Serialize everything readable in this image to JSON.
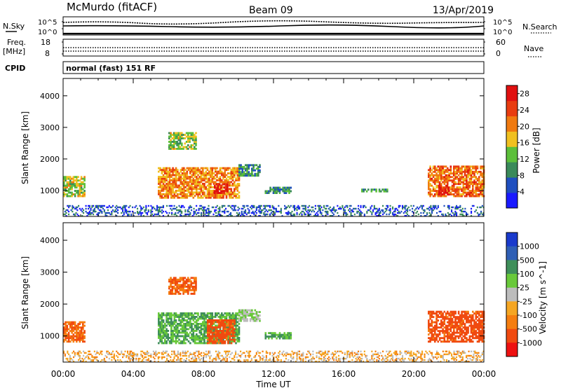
{
  "header": {
    "station": "McMurdo (fitACF)",
    "beam": "Beam 09",
    "date": "13/Apr/2019"
  },
  "noise_panel": {
    "left_label": "N.Sky",
    "right_label": "N.Search",
    "left_ticks": [
      "10^5",
      "10^0"
    ],
    "right_ticks": [
      "10^5",
      "10^0"
    ]
  },
  "freq_panel": {
    "left_label": "Freq.",
    "left_unit": "[MHz]",
    "right_label": "Nave",
    "left_ticks": [
      "18",
      "8"
    ],
    "right_ticks": [
      "60",
      "0"
    ]
  },
  "cpid": {
    "label": "CPID",
    "value": "normal (fast) 151 RF"
  },
  "x_axis": {
    "label": "Time UT",
    "ticks": [
      "00:00",
      "04:00",
      "08:00",
      "12:00",
      "16:00",
      "20:00",
      "00:00"
    ],
    "range_hours": [
      0,
      24
    ]
  },
  "colors": {
    "power_scale": [
      "#1a1aff",
      "#1f4fbf",
      "#3a8a5a",
      "#5cbf3a",
      "#f0c020",
      "#f07a10",
      "#e83c10",
      "#e01010"
    ],
    "velocity_scale": [
      "#ee1111",
      "#f04a10",
      "#f57e10",
      "#f5a623",
      "#bcbcbc",
      "#69c93a",
      "#3f8f5a",
      "#2f5fb5",
      "#1a3acc"
    ]
  },
  "chart_data": [
    {
      "type": "heatmap",
      "title": "Power",
      "ylabel": "Slant Range [km]",
      "xlabel": "Time UT",
      "ylim": [
        180,
        4550
      ],
      "yticks": [
        "1000",
        "2000",
        "3000",
        "4000"
      ],
      "colorbar": {
        "label": "Power [dB]",
        "ticks": [
          "4",
          "8",
          "12",
          "16",
          "20",
          "24",
          "28"
        ],
        "range": [
          0,
          30
        ]
      },
      "regions": [
        {
          "t": [
            0.0,
            1.2
          ],
          "r": [
            800,
            1450
          ],
          "value_dB": 15
        },
        {
          "t": [
            5.4,
            10.0
          ],
          "r": [
            750,
            1700
          ],
          "value_dB": 20
        },
        {
          "t": [
            8.6,
            9.4
          ],
          "r": [
            900,
            1200
          ],
          "value_dB": 28
        },
        {
          "t": [
            6.0,
            7.6
          ],
          "r": [
            2300,
            2800
          ],
          "value_dB": 14
        },
        {
          "t": [
            10.0,
            11.2
          ],
          "r": [
            1450,
            1800
          ],
          "value_dB": 10
        },
        {
          "t": [
            11.5,
            13.0
          ],
          "r": [
            900,
            1100
          ],
          "value_dB": 9
        },
        {
          "t": [
            17.0,
            18.5
          ],
          "r": [
            950,
            1050
          ],
          "value_dB": 10
        },
        {
          "t": [
            20.8,
            24.0
          ],
          "r": [
            800,
            1750
          ],
          "value_dB": 22
        },
        {
          "t": [
            21.4,
            22.0
          ],
          "r": [
            850,
            1150
          ],
          "value_dB": 28
        },
        {
          "t": [
            0.0,
            24.0
          ],
          "r": [
            180,
            500
          ],
          "value_dB": 6
        }
      ]
    },
    {
      "type": "heatmap",
      "title": "Velocity",
      "ylabel": "Slant Range [km]",
      "xlabel": "Time UT",
      "ylim": [
        180,
        4550
      ],
      "yticks": [
        "1000",
        "2000",
        "3000",
        "4000"
      ],
      "colorbar": {
        "label": "Velocity [m s^-1]",
        "ticks": [
          "1000",
          "500",
          "100",
          "25",
          "-25",
          "-100",
          "-500",
          "-1000"
        ]
      },
      "regions": [
        {
          "t": [
            0.0,
            1.2
          ],
          "r": [
            800,
            1450
          ],
          "value_ms": -100
        },
        {
          "t": [
            5.4,
            10.0
          ],
          "r": [
            750,
            1700
          ],
          "value_ms": 300
        },
        {
          "t": [
            8.2,
            9.8
          ],
          "r": [
            750,
            1500
          ],
          "value_ms": -150
        },
        {
          "t": [
            6.0,
            7.6
          ],
          "r": [
            2300,
            2800
          ],
          "value_ms": -100
        },
        {
          "t": [
            10.0,
            11.2
          ],
          "r": [
            1450,
            1800
          ],
          "value_ms": 100
        },
        {
          "t": [
            11.5,
            13.0
          ],
          "r": [
            900,
            1100
          ],
          "value_ms": 300
        },
        {
          "t": [
            20.8,
            24.0
          ],
          "r": [
            800,
            1750
          ],
          "value_ms": -150
        },
        {
          "t": [
            0.0,
            24.0
          ],
          "r": [
            180,
            500
          ],
          "value_ms": 0
        }
      ]
    }
  ]
}
